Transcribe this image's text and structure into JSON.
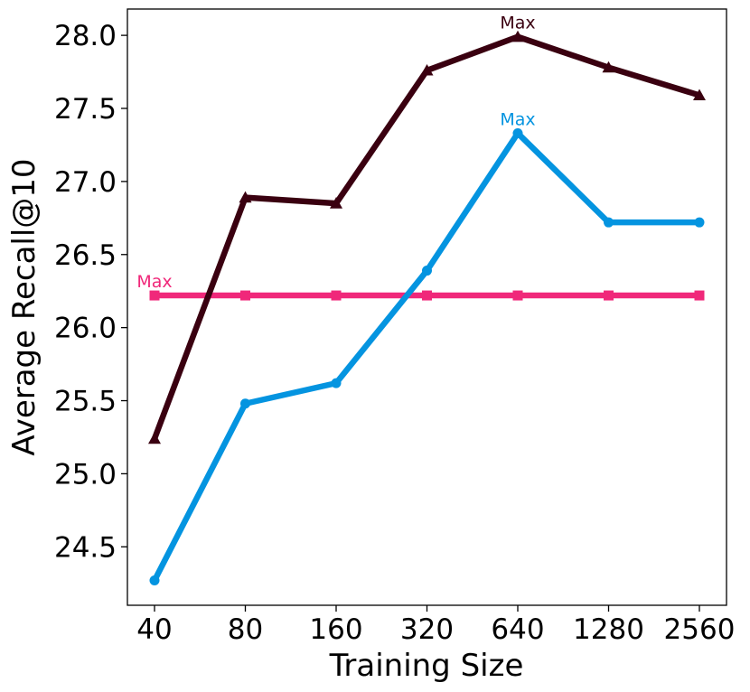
{
  "chart_data": {
    "type": "line",
    "title": "",
    "xlabel": "Training Size",
    "ylabel": "Average Recall@10",
    "categories": [
      "40",
      "80",
      "160",
      "320",
      "640",
      "1280",
      "2560"
    ],
    "y_ticks": [
      "24.5",
      "25.0",
      "25.5",
      "26.0",
      "26.5",
      "27.0",
      "27.5",
      "28.0"
    ],
    "ylim": [
      24.1,
      28.18
    ],
    "grid": false,
    "legend": "none",
    "series": [
      {
        "key": "triangle",
        "color": "#3a0010",
        "marker": "triangle",
        "values": [
          25.24,
          26.89,
          26.85,
          27.76,
          27.99,
          27.78,
          27.59
        ],
        "annotation": {
          "text": "Max",
          "index": 4
        }
      },
      {
        "key": "circle",
        "color": "#0494e0",
        "marker": "circle",
        "values": [
          24.27,
          25.48,
          25.62,
          26.39,
          27.33,
          26.72,
          26.72
        ],
        "annotation": {
          "text": "Max",
          "index": 4
        }
      },
      {
        "key": "square",
        "color": "#f0287a",
        "marker": "square",
        "values": [
          26.22,
          26.22,
          26.22,
          26.22,
          26.22,
          26.22,
          26.22
        ],
        "annotation": {
          "text": "Max",
          "index": 0
        }
      }
    ]
  }
}
